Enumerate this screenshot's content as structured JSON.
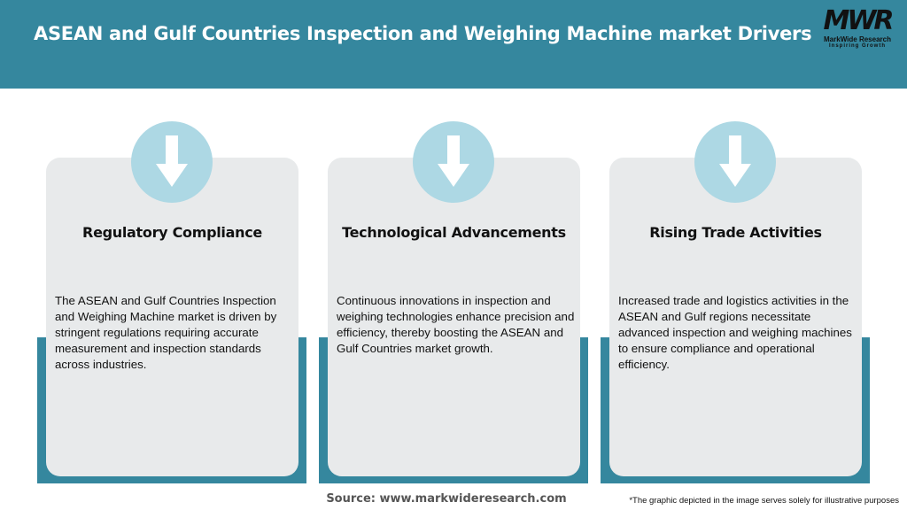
{
  "header": {
    "title": "ASEAN and Gulf Countries Inspection and Weighing Machine market Drivers"
  },
  "logo": {
    "mark": "MWR",
    "name": "MarkWide Research",
    "tagline": "Inspiring Growth"
  },
  "colors": {
    "accent": "#35879e",
    "circle": "#add8e4",
    "card": "#e8eaeb"
  },
  "cards": [
    {
      "icon": "arrow-down-icon",
      "heading": "Regulatory Compliance",
      "body": "The ASEAN and Gulf Countries Inspection and Weighing Machine market is driven by stringent regulations requiring accurate measurement and inspection standards across industries."
    },
    {
      "icon": "arrow-down-icon",
      "heading": "Technological Advancements",
      "body": "Continuous innovations in inspection and weighing technologies enhance precision and efficiency, thereby boosting the ASEAN and Gulf Countries market growth."
    },
    {
      "icon": "arrow-down-icon",
      "heading": "Rising Trade Activities",
      "body": "Increased trade and logistics activities in the ASEAN and Gulf regions necessitate advanced inspection and weighing machines to ensure compliance and operational efficiency."
    }
  ],
  "footer": {
    "source": "Source: www.markwideresearch.com",
    "note": "*The graphic depicted in the image serves solely for illustrative purposes"
  }
}
